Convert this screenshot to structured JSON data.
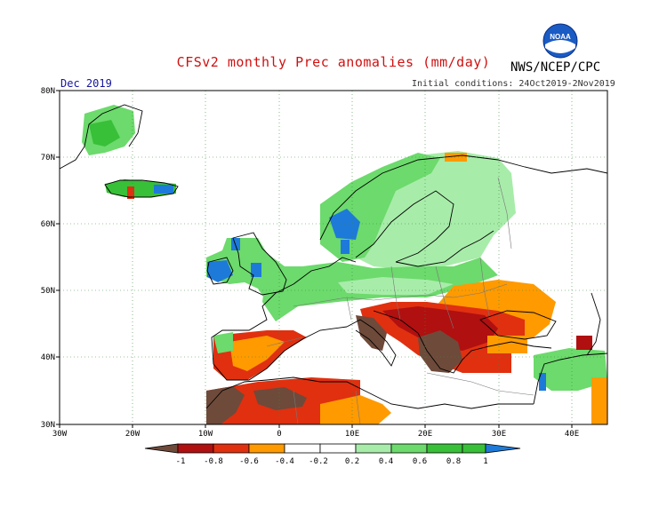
{
  "header": {
    "title": "CFSv2 monthly Prec anomalies (mm/day)",
    "agency": "NWS/NCEP/CPC",
    "logo_text": "NOAA",
    "month": "Dec 2019",
    "initial_conditions": "Initial conditions: 24Oct2019-2Nov2019"
  },
  "map": {
    "lat_labels": [
      "80N",
      "70N",
      "60N",
      "50N",
      "40N",
      "30N"
    ],
    "lon_labels": [
      "30W",
      "20W",
      "10W",
      "0",
      "10E",
      "20E",
      "30E",
      "40E"
    ],
    "lat_range": [
      30,
      80
    ],
    "lon_range": [
      -30,
      45
    ],
    "grid": "dotted",
    "ocean_color": "#ffffff",
    "coastline_color": "#000000"
  },
  "colorbar": {
    "tick_labels": [
      "-1",
      "-0.8",
      "-0.6",
      "-0.4",
      "-0.2",
      "0.2",
      "0.4",
      "0.6",
      "0.8",
      "1"
    ],
    "colors": [
      "#6e4a3a",
      "#b01010",
      "#e03010",
      "#ff9a00",
      "#ffffff",
      "#ffffff",
      "#a8ecaa",
      "#6cda6c",
      "#38c038",
      "#1e7ad8"
    ]
  },
  "anomaly_regions": [
    {
      "name": "Scandinavia",
      "category": "0.4",
      "color": "#a8ecaa"
    },
    {
      "name": "Norway coast",
      "category": "0.6",
      "color": "#6cda6c"
    },
    {
      "name": "Western Norway",
      "category": "1",
      "color": "#1e7ad8"
    },
    {
      "name": "British Isles",
      "category": "0.6",
      "color": "#6cda6c"
    },
    {
      "name": "Iceland",
      "category": "0.8",
      "color": "#38c038"
    },
    {
      "name": "Greenland coast",
      "category": "0.6",
      "color": "#6cda6c"
    },
    {
      "name": "Iberia",
      "category": "-0.6",
      "color": "#e03010"
    },
    {
      "name": "North Africa",
      "category": "-0.6",
      "color": "#e03010"
    },
    {
      "name": "Morocco",
      "category": "-1",
      "color": "#6e4a3a"
    },
    {
      "name": "Italy",
      "category": "-0.8",
      "color": "#b01010"
    },
    {
      "name": "Balkans",
      "category": "-0.8",
      "color": "#b01010"
    },
    {
      "name": "Greece",
      "category": "-1",
      "color": "#6e4a3a"
    },
    {
      "name": "Ukraine",
      "category": "-0.4",
      "color": "#ff9a00"
    },
    {
      "name": "Turkey",
      "category": "0.4",
      "color": "#a8ecaa"
    }
  ]
}
